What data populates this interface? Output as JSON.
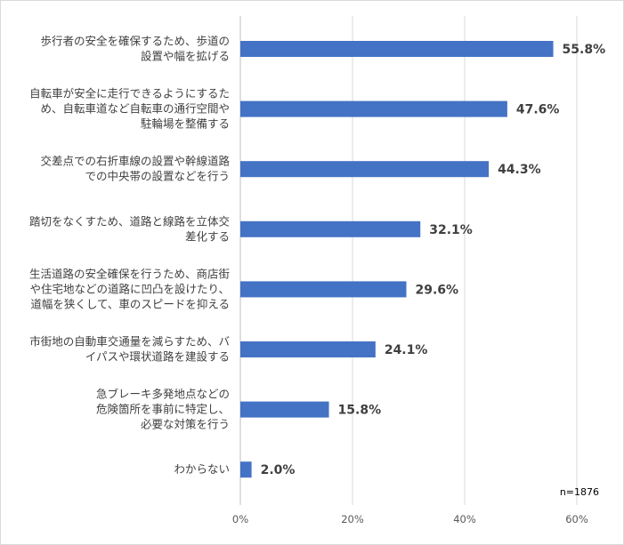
{
  "chart_data": {
    "type": "bar",
    "orientation": "horizontal",
    "categories": [
      [
        "歩行者の安全を確保するため、歩道の",
        "設置や幅を拡げる"
      ],
      [
        "自転車が安全に走行できるようにするた",
        "め、自転車道など自転車の通行空間や",
        "駐輪場を整備する"
      ],
      [
        "交差点での右折車線の設置や幹線道路",
        "での中央帯の設置などを行う"
      ],
      [
        "踏切をなくすため、道路と線路を立体交",
        "差化する"
      ],
      [
        "生活道路の安全確保を行うため、商店街",
        "や住宅地などの道路に凹凸を設けたり、",
        "道幅を狭くして、車のスピードを抑える"
      ],
      [
        "市街地の自動車交通量を減らすため、バ",
        "イパスや環状道路を建設する"
      ],
      [
        "急ブレーキ多発地点などの",
        "危険箇所を事前に特定し、",
        "必要な対策を行う"
      ],
      [
        "わからない"
      ]
    ],
    "values": [
      55.8,
      47.6,
      44.3,
      32.1,
      29.6,
      24.1,
      15.8,
      2.0
    ],
    "value_labels": [
      "55.8%",
      "47.6%",
      "44.3%",
      "32.1%",
      "29.6%",
      "24.1%",
      "15.8%",
      "2.0%"
    ],
    "xlim": [
      0,
      60
    ],
    "xticks": [
      0,
      20,
      40,
      60
    ],
    "xtick_labels": [
      "0%",
      "20%",
      "40%",
      "60%"
    ],
    "grid": true,
    "bar_color": "#4472c4",
    "note": "n=1876"
  }
}
